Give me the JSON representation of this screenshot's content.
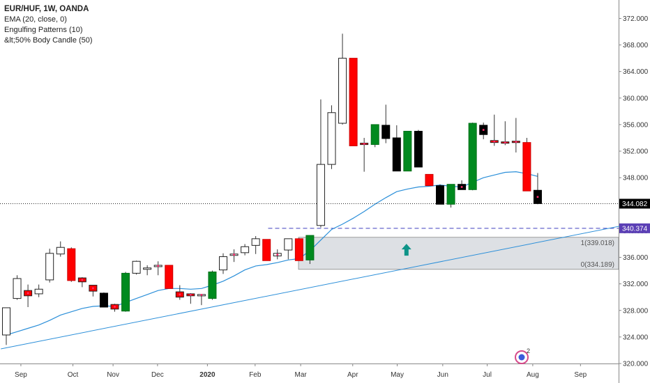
{
  "legend": {
    "title": "EUR/HUF, 1W, OANDA",
    "indicators": [
      "EMA (20, close, 0)",
      "Engulfing Patterns (10)",
      "&lt;50% Body Candle (50)"
    ]
  },
  "colors": {
    "up_fill": "#ffffff",
    "down_fill": "#ff0000",
    "engulf_up": "#008a1f",
    "engulf_down": "#000000",
    "ema": "#2b8fd9",
    "trendline": "#2b8fd9",
    "dashed_level": "#3d3dbf",
    "zone": "#dde0e4",
    "arrow": "#0d9488",
    "price_badge": "#000000",
    "level_badge": "#5b3fb5"
  },
  "chart_data": {
    "type": "candlestick",
    "symbol": "EUR/HUF",
    "timeframe": "1W",
    "exchange": "OANDA",
    "ylim": [
      320,
      374
    ],
    "y_ticks": [
      320,
      324,
      328,
      332,
      336,
      340,
      344,
      348,
      352,
      356,
      360,
      364,
      368,
      372
    ],
    "x_labels": [
      "Sep",
      "Oct",
      "Nov",
      "Dec",
      "2020",
      "Feb",
      "Mar",
      "Apr",
      "May",
      "Jun",
      "Jul",
      "Aug",
      "Sep"
    ],
    "x_label_week_index": [
      1.7,
      6.5,
      10.2,
      14.3,
      18.9,
      23.3,
      27.5,
      32.3,
      36.4,
      40.6,
      44.7,
      48.9,
      53.3
    ],
    "candles": [
      {
        "o": 324.3,
        "h": 328.4,
        "l": 322.8,
        "c": 328.4,
        "k": "up"
      },
      {
        "o": 329.8,
        "h": 333.3,
        "l": 329.6,
        "c": 332.8,
        "k": "up"
      },
      {
        "o": 331.0,
        "h": 331.9,
        "l": 328.5,
        "c": 330.2,
        "k": "doji"
      },
      {
        "o": 330.5,
        "h": 331.9,
        "l": 330.0,
        "c": 331.2,
        "k": "up"
      },
      {
        "o": 332.6,
        "h": 337.3,
        "l": 332.2,
        "c": 336.6,
        "k": "up"
      },
      {
        "o": 336.5,
        "h": 338.4,
        "l": 336.1,
        "c": 337.5,
        "k": "up"
      },
      {
        "o": 337.3,
        "h": 337.5,
        "l": 332.3,
        "c": 332.5,
        "k": "down"
      },
      {
        "o": 332.9,
        "h": 333.0,
        "l": 331.5,
        "c": 332.3,
        "k": "doji"
      },
      {
        "o": 331.8,
        "h": 331.8,
        "l": 330.1,
        "c": 330.9,
        "k": "doji"
      },
      {
        "o": 330.6,
        "h": 330.7,
        "l": 328.5,
        "c": 328.5,
        "k": "engulf_down"
      },
      {
        "o": 328.9,
        "h": 329.0,
        "l": 327.8,
        "c": 328.2,
        "k": "doji"
      },
      {
        "o": 327.9,
        "h": 333.8,
        "l": 327.8,
        "c": 333.6,
        "k": "engulf_up"
      },
      {
        "o": 333.6,
        "h": 335.5,
        "l": 333.4,
        "c": 335.4,
        "k": "up"
      },
      {
        "o": 334.3,
        "h": 334.8,
        "l": 333.3,
        "c": 334.4,
        "k": "up"
      },
      {
        "o": 334.6,
        "h": 335.4,
        "l": 333.3,
        "c": 334.8,
        "k": "doji"
      },
      {
        "o": 334.8,
        "h": 334.8,
        "l": 331.3,
        "c": 331.3,
        "k": "down"
      },
      {
        "o": 330.8,
        "h": 331.8,
        "l": 329.6,
        "c": 330.0,
        "k": "doji"
      },
      {
        "o": 330.5,
        "h": 330.6,
        "l": 329.0,
        "c": 330.2,
        "k": "doji"
      },
      {
        "o": 330.3,
        "h": 330.4,
        "l": 328.8,
        "c": 330.4,
        "k": "doji"
      },
      {
        "o": 329.8,
        "h": 334.0,
        "l": 329.6,
        "c": 333.8,
        "k": "engulf_up"
      },
      {
        "o": 334.1,
        "h": 336.6,
        "l": 333.5,
        "c": 336.1,
        "k": "up"
      },
      {
        "o": 336.3,
        "h": 337.2,
        "l": 335.3,
        "c": 336.5,
        "k": "doji"
      },
      {
        "o": 336.7,
        "h": 338.0,
        "l": 336.3,
        "c": 337.6,
        "k": "up"
      },
      {
        "o": 337.8,
        "h": 339.2,
        "l": 336.5,
        "c": 338.8,
        "k": "up"
      },
      {
        "o": 338.7,
        "h": 338.7,
        "l": 335.5,
        "c": 335.5,
        "k": "down"
      },
      {
        "o": 336.2,
        "h": 337.2,
        "l": 335.7,
        "c": 336.6,
        "k": "doji"
      },
      {
        "o": 337.1,
        "h": 338.7,
        "l": 335.7,
        "c": 338.8,
        "k": "up"
      },
      {
        "o": 338.8,
        "h": 338.9,
        "l": 335.5,
        "c": 335.5,
        "k": "down"
      },
      {
        "o": 335.6,
        "h": 339.3,
        "l": 335.0,
        "c": 339.3,
        "k": "engulf_up"
      },
      {
        "o": 340.8,
        "h": 359.8,
        "l": 340.5,
        "c": 350.0,
        "k": "up"
      },
      {
        "o": 350.0,
        "h": 358.9,
        "l": 349.3,
        "c": 357.8,
        "k": "up"
      },
      {
        "o": 356.2,
        "h": 369.7,
        "l": 356.0,
        "c": 366.0,
        "k": "up"
      },
      {
        "o": 366.0,
        "h": 366.0,
        "l": 352.8,
        "c": 352.8,
        "k": "down"
      },
      {
        "o": 353.2,
        "h": 354.0,
        "l": 348.9,
        "c": 353.0,
        "k": "doji"
      },
      {
        "o": 353.0,
        "h": 356.0,
        "l": 352.6,
        "c": 356.0,
        "k": "engulf_up"
      },
      {
        "o": 355.9,
        "h": 359.0,
        "l": 353.2,
        "c": 353.9,
        "k": "engulf_down"
      },
      {
        "o": 354.0,
        "h": 355.9,
        "l": 349.0,
        "c": 349.0,
        "k": "engulf_down"
      },
      {
        "o": 349.0,
        "h": 355.0,
        "l": 349.0,
        "c": 355.0,
        "k": "engulf_up"
      },
      {
        "o": 355.0,
        "h": 355.2,
        "l": 349.6,
        "c": 349.6,
        "k": "engulf_down"
      },
      {
        "o": 348.5,
        "h": 348.5,
        "l": 346.8,
        "c": 346.8,
        "k": "down"
      },
      {
        "o": 346.8,
        "h": 347.0,
        "l": 344.0,
        "c": 344.0,
        "k": "engulf_down"
      },
      {
        "o": 344.0,
        "h": 347.0,
        "l": 343.5,
        "c": 347.0,
        "k": "engulf_up"
      },
      {
        "o": 347.0,
        "h": 347.6,
        "l": 346.2,
        "c": 346.2,
        "k": "engulf_down"
      },
      {
        "o": 346.2,
        "h": 356.3,
        "l": 346.1,
        "c": 356.2,
        "k": "engulf_up"
      },
      {
        "o": 355.9,
        "h": 356.3,
        "l": 353.8,
        "c": 354.5,
        "k": "engulf_down"
      },
      {
        "o": 353.6,
        "h": 357.5,
        "l": 352.8,
        "c": 353.3,
        "k": "doji"
      },
      {
        "o": 353.4,
        "h": 356.5,
        "l": 352.9,
        "c": 353.2,
        "k": "doji"
      },
      {
        "o": 353.5,
        "h": 357.0,
        "l": 351.8,
        "c": 353.3,
        "k": "doji"
      },
      {
        "o": 353.3,
        "h": 354.0,
        "l": 346.0,
        "c": 346.0,
        "k": "down"
      },
      {
        "o": 346.1,
        "h": 348.7,
        "l": 344.0,
        "c": 344.1,
        "k": "engulf_down"
      }
    ],
    "ema": [
      [
        0,
        324.3
      ],
      [
        1,
        324.8
      ],
      [
        2,
        325.3
      ],
      [
        3,
        325.8
      ],
      [
        4,
        326.5
      ],
      [
        5,
        327.3
      ],
      [
        6,
        327.8
      ],
      [
        7,
        328.3
      ],
      [
        8,
        328.6
      ],
      [
        9,
        328.7
      ],
      [
        10,
        328.6
      ],
      [
        11,
        329.2
      ],
      [
        12,
        329.8
      ],
      [
        13,
        330.4
      ],
      [
        14,
        331.0
      ],
      [
        15,
        331.3
      ],
      [
        16,
        331.3
      ],
      [
        17,
        331.2
      ],
      [
        18,
        331.3
      ],
      [
        19,
        331.8
      ],
      [
        20,
        332.4
      ],
      [
        21,
        333.2
      ],
      [
        22,
        334.1
      ],
      [
        23,
        334.7
      ],
      [
        24,
        334.9
      ],
      [
        25,
        335.2
      ],
      [
        26,
        335.6
      ],
      [
        27,
        335.8
      ],
      [
        28,
        337.0
      ],
      [
        29,
        338.6
      ],
      [
        30,
        340.2
      ],
      [
        31,
        341.0
      ],
      [
        32,
        341.9
      ],
      [
        33,
        342.9
      ],
      [
        34,
        344.0
      ],
      [
        35,
        345.0
      ],
      [
        36,
        345.9
      ],
      [
        37,
        346.3
      ],
      [
        38,
        346.6
      ],
      [
        39,
        346.7
      ],
      [
        40,
        346.9
      ],
      [
        41,
        346.7
      ],
      [
        42,
        346.6
      ],
      [
        43,
        347.3
      ],
      [
        44,
        348.0
      ],
      [
        45,
        348.4
      ],
      [
        46,
        348.8
      ],
      [
        47,
        348.9
      ],
      [
        48,
        348.6
      ],
      [
        49,
        348.2
      ]
    ],
    "trendline": {
      "from": [
        -0.5,
        322.2
      ],
      "to": [
        57.5,
        341.0
      ]
    },
    "dashed_level": {
      "value": 340.374,
      "from_week": 24.5
    },
    "zone": {
      "top": 339.018,
      "bottom": 334.189,
      "from_week": 27.3
    },
    "zone_labels": [
      "1(339.018)",
      "0(334.189)"
    ],
    "arrow": {
      "week": 36.9,
      "value": 337.2
    },
    "current_price": 344.082,
    "level_label": "340.374",
    "price_label": "344.082",
    "notification_count": "2"
  }
}
